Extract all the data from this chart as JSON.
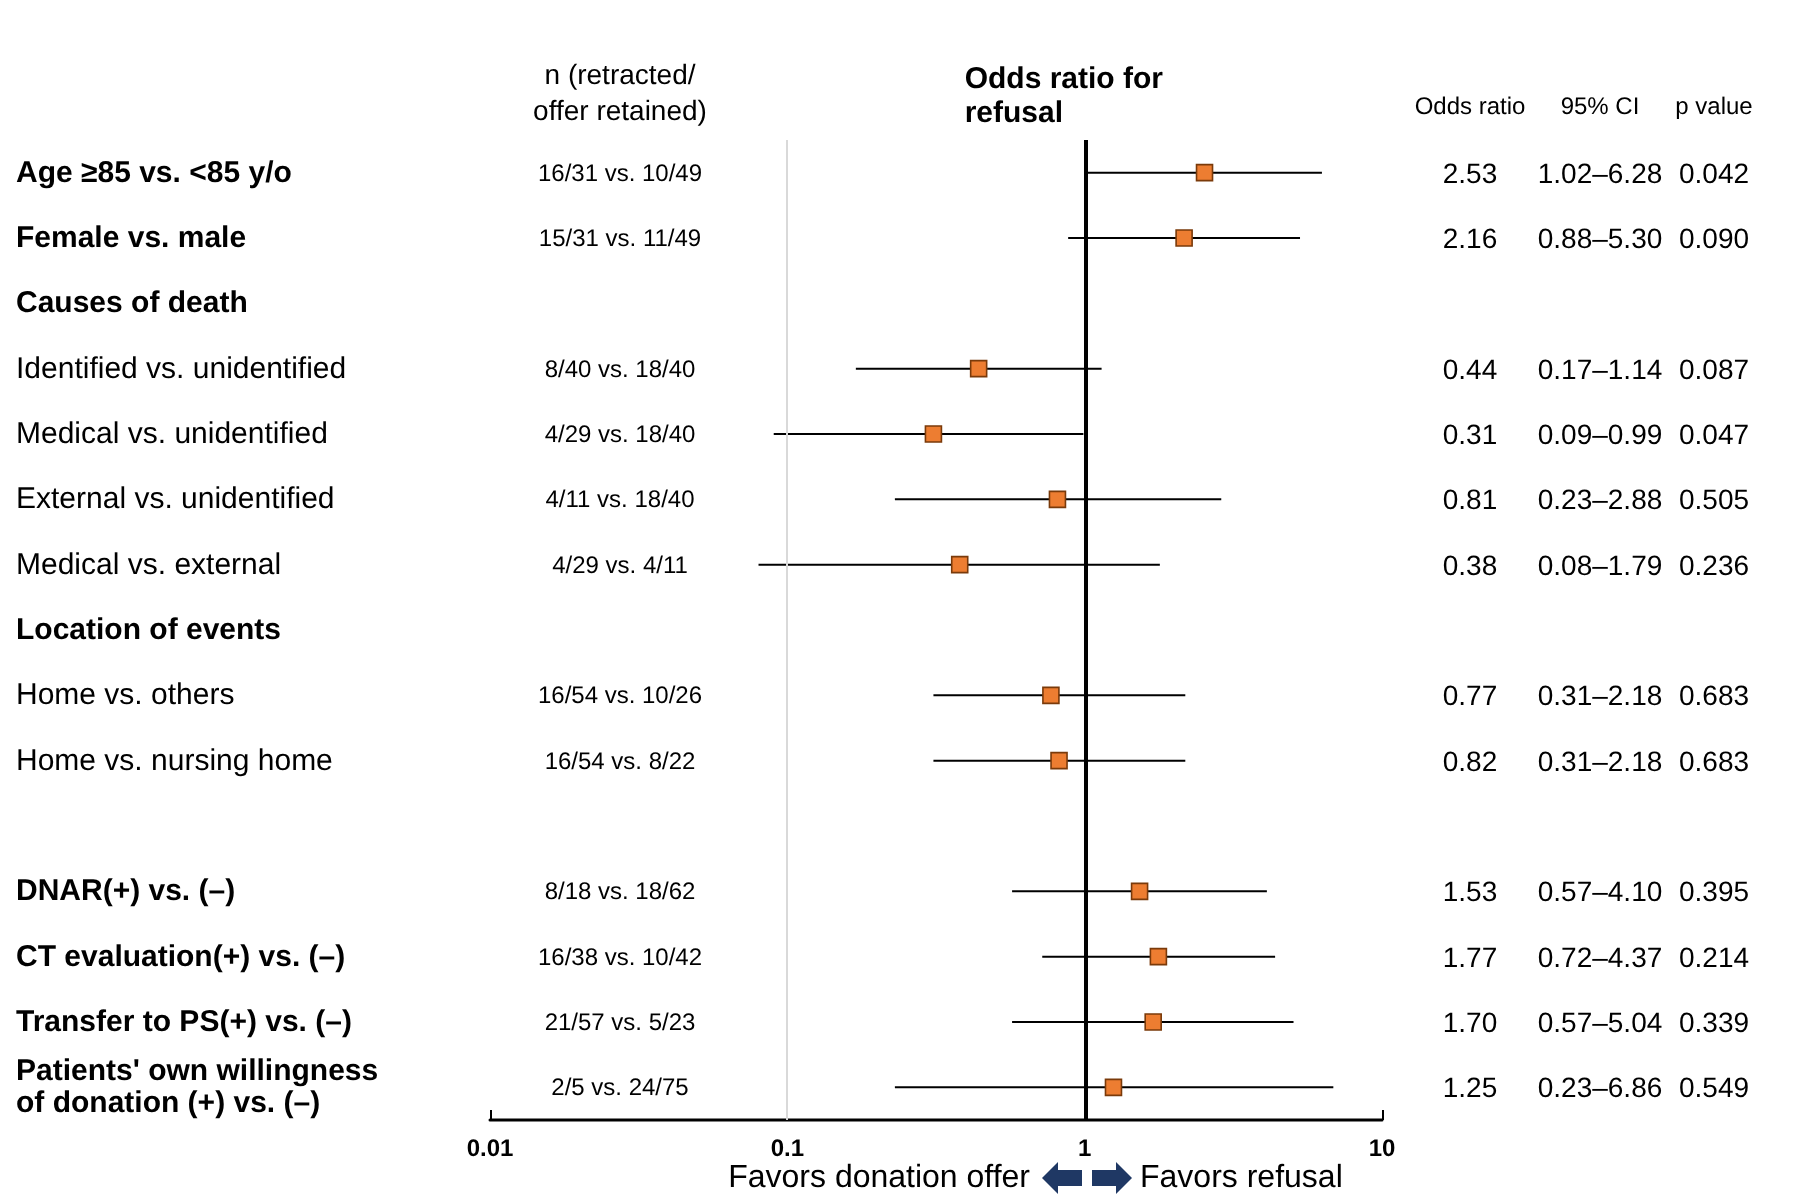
{
  "chart_data": {
    "type": "scatter",
    "title": "Odds ratio for refusal",
    "orientation": "horizontal",
    "categories": [
      "Age ≥85 vs. <85 y/o",
      "Female vs. male",
      "Causes of death",
      "Identified vs. unidentified",
      "Medical vs. unidentified",
      "External vs. unidentified",
      "Medical vs. external",
      "Location of events",
      "Home vs. others",
      "Home vs. nursing home",
      null,
      "DNAR(+) vs. (–)",
      "CT evaluation(+) vs. (–)",
      "Transfer to PS(+) vs. (–)",
      "Patients' own willingness\nof donation (+) vs. (–)"
    ],
    "series": [
      {
        "color": "#ed7d31",
        "values": [
          2.53,
          2.16,
          null,
          0.44,
          0.31,
          0.81,
          0.38,
          null,
          0.77,
          0.82,
          null,
          1.53,
          1.77,
          1.7,
          1.25
        ],
        "value_labels": [
          "2.53",
          "2.16",
          null,
          "0.44",
          "0.31",
          "0.81",
          "0.38",
          null,
          "0.77",
          "0.82",
          null,
          "1.53",
          "1.77",
          "1.70",
          "1.25"
        ],
        "errors": [
          [
            1.02,
            6.28
          ],
          [
            0.88,
            5.3
          ],
          null,
          [
            0.17,
            1.14
          ],
          [
            0.09,
            0.99
          ],
          [
            0.23,
            2.88
          ],
          [
            0.08,
            1.79
          ],
          null,
          [
            0.31,
            2.18
          ],
          [
            0.31,
            2.18
          ],
          null,
          [
            0.57,
            4.1
          ],
          [
            0.72,
            4.37
          ],
          [
            0.57,
            5.04
          ],
          [
            0.23,
            6.86
          ]
        ]
      }
    ],
    "xlim": [
      0.01,
      10
    ],
    "xticks": [
      0.01,
      0.1,
      1,
      10
    ],
    "log": "x",
    "marker": "square",
    "ref_lines": [
      {
        "axis": "x",
        "value": 1,
        "color": "#000000"
      },
      {
        "axis": "x",
        "value": 0.1,
        "color": "#d9d9d9"
      }
    ],
    "annotations": [
      "n (retracted/offer retained)",
      "Odds ratio",
      "95% CI",
      "p value",
      "Favors donation offer",
      "Favors refusal",
      "16/31 vs. 10/49",
      "1.02–6.28",
      "0.042",
      "15/31 vs. 11/49",
      "0.88–5.30",
      "0.090",
      "8/40 vs. 18/40",
      "0.17–1.14",
      "0.087",
      "4/29 vs. 18/40",
      "0.09–0.99",
      "0.047",
      "4/11 vs. 18/40",
      "0.23–2.88",
      "0.505",
      "4/29 vs. 4/11",
      "0.08–1.79",
      "0.236",
      "16/54 vs. 10/26",
      "0.31–2.18",
      "0.683",
      "16/54 vs. 8/22",
      "0.31–2.18",
      "0.683",
      "8/18 vs. 18/62",
      "0.57–4.10",
      "0.395",
      "16/38 vs. 10/42",
      "0.72–4.37",
      "0.214",
      "21/57 vs. 5/23",
      "0.57–5.04",
      "0.339",
      "2/5 vs. 24/75",
      "0.23–6.86",
      "0.549"
    ]
  }
}
